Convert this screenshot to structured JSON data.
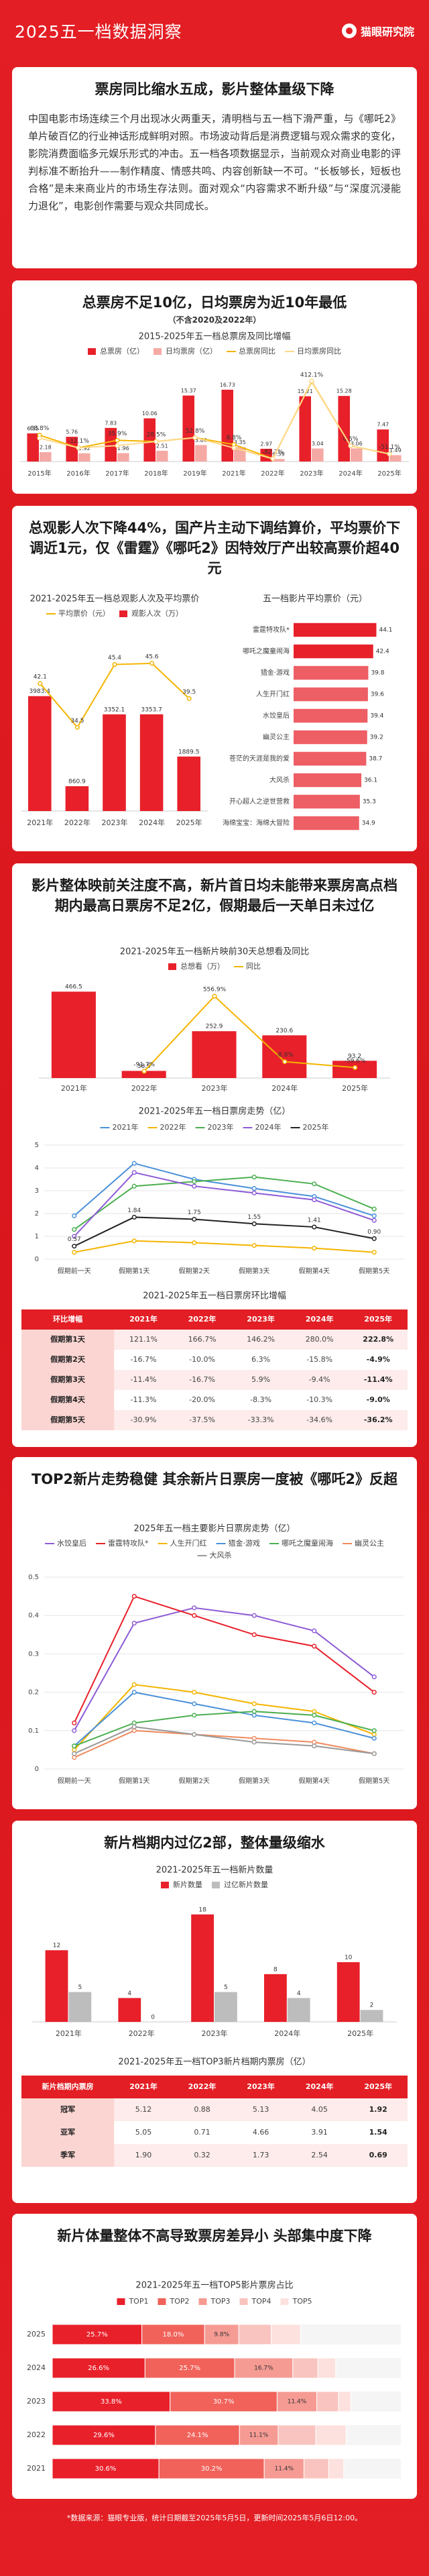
{
  "header": {
    "title": "2025五一档数据洞察",
    "logo": "猫眼研究院"
  },
  "sections": [
    {
      "heading": "票房同比缩水五成，影片整体量级下降",
      "text": "中国电影市场连续三个月出现冰火两重天，清明档与五一档下滑严重，与《哪吒2》单片破百亿的行业神话形成鲜明对照。市场波动背后是消费逻辑与观众需求的变化，影院消费面临多元娱乐形式的冲击。五一档各项数据显示，当前观众对商业电影的评判标准不断抬升——制作精度、情感共鸣、内容创新缺一不可。“长板够长，短板也合格”是未来商业片的市场生存法则。面对观众“内容需求不断升级”与“深度沉浸能力退化”，电影创作需要与观众共同成长。"
    },
    {
      "heading": "总票房不足10亿，日均票房为近10年最低",
      "note": "（不含2020及2022年）"
    },
    {
      "heading": "总观影人次下降44%，国产片主动下调结算价，平均票价下调近1元，仅《雷霆》《哪吒2》因特效厅产出较高票价超40元"
    },
    {
      "heading": "影片整体映前关注度不高，新片首日均未能带来票房高点档期内最高日票房不足2亿，假期最后一天单日未过亿"
    },
    {
      "heading": "TOP2新片走势稳健 其余新片日票房一度被《哪吒2》反超"
    },
    {
      "heading": "新片档期内过亿2部，整体量级缩水"
    },
    {
      "heading": "新片体量整体不高导致票房差异小 头部集中度下降"
    }
  ],
  "chart_data": [
    {
      "type": "bar",
      "title": "2015-2025年五一档总票房及同比增幅",
      "categories": [
        "2015年",
        "2016年",
        "2017年",
        "2018年",
        "2019年",
        "2021年",
        "2022年",
        "2023年",
        "2024年",
        "2025年"
      ],
      "series": [
        {
          "name": "总票房（亿）",
          "color": "#e8202a",
          "values": [
            6.55,
            5.76,
            7.83,
            10.06,
            15.37,
            16.73,
            2.97,
            15.21,
            15.28,
            7.47
          ]
        },
        {
          "name": "日均票房（亿）",
          "color": "#f5a9a4",
          "values": [
            2.18,
            1.92,
            1.96,
            2.51,
            3.84,
            3.35,
            0.59,
            3.04,
            3.06,
            1.49
          ]
        },
        {
          "name": "总票房同比",
          "color": "#f4b400",
          "axis": "y2",
          "values": [
            68.8,
            -12.1,
            35.9,
            28.5,
            52.8,
            8.8,
            -82.2,
            412.1,
            0.5,
            -51.1
          ],
          "value_labels": [
            "68.8%",
            "-12.1%",
            "35.9%",
            "28.5%",
            "52.8%",
            "8.8%",
            "-82.2%",
            "412.1%",
            "0.5%",
            "-51.1%"
          ]
        },
        {
          "name": "日均票房同比",
          "color": "#ffd98a",
          "axis": "y2",
          "values": [
            50.0,
            -11.9,
            2.1,
            28.1,
            53.0,
            -12.8,
            -82.4,
            415.3,
            0.7,
            -51.3
          ]
        }
      ],
      "ylim": [
        0,
        20
      ],
      "y2lim": [
        -100,
        450
      ]
    },
    {
      "type": "bar",
      "title": "2021-2025年五一档总观影人次及平均票价",
      "categories": [
        "2021年",
        "2022年",
        "2023年",
        "2024年",
        "2025年"
      ],
      "series": [
        {
          "name": "平均票价（元）",
          "color": "#f4b400",
          "axis": "y2",
          "labels": true,
          "values": [
            42.1,
            34.5,
            45.4,
            45.6,
            39.5
          ]
        },
        {
          "name": "观影人次（万）",
          "color": "#e8202a",
          "values": [
            3983.4,
            860.9,
            3352.1,
            3353.7,
            1889.5
          ]
        }
      ],
      "ylim": [
        0,
        6000
      ],
      "y2lim": [
        20,
        50
      ]
    },
    {
      "type": "barh",
      "title": "五一档影片平均票价（元）",
      "categories": [
        "雷霆特攻队*",
        "哪吒之魔童闹海",
        "猎金·游戏",
        "人生开门红",
        "水饺皇后",
        "幽灵公主",
        "苍茫的天涯是我的爱",
        "大风杀",
        "开心超人之逆世营救",
        "海绵宝宝：海绵大冒险"
      ],
      "values": [
        44.1,
        42.4,
        39.8,
        39.6,
        39.4,
        39.2,
        38.7,
        36.1,
        35.3,
        34.9
      ],
      "color": "#e8202a",
      "xlim": [
        0,
        50
      ]
    },
    {
      "type": "bar",
      "title": "2021-2025年五一档新片映前30天总想看及同比",
      "categories": [
        "2021年",
        "2022年",
        "2023年",
        "2024年",
        "2025年"
      ],
      "series": [
        {
          "name": "总想看（万）",
          "color": "#e8202a",
          "values": [
            466.5,
            38.5,
            252.9,
            230.6,
            93.2
          ]
        },
        {
          "name": "同比",
          "color": "#f4b400",
          "axis": "y2",
          "values": [
            null,
            -91.7,
            556.9,
            -8.8,
            -59.6
          ],
          "value_labels": [
            null,
            "-91.7%",
            "556.9%",
            "-8.8%",
            "-59.6%"
          ]
        }
      ],
      "ylim": [
        0,
        500
      ],
      "y2lim": [
        -150,
        650
      ]
    },
    {
      "type": "line",
      "title": "2021-2025年五一档日票房走势（亿）",
      "categories": [
        "假期前一天",
        "假期第1天",
        "假期第2天",
        "假期第3天",
        "假期第4天",
        "假期第5天"
      ],
      "series": [
        {
          "name": "2021年",
          "color": "#4a90d9",
          "values": [
            1.9,
            4.2,
            3.5,
            3.1,
            2.75,
            1.9
          ]
        },
        {
          "name": "2022年",
          "color": "#f4b400",
          "values": [
            0.3,
            0.8,
            0.72,
            0.6,
            0.48,
            0.3
          ]
        },
        {
          "name": "2023年",
          "color": "#4caf50",
          "values": [
            1.3,
            3.2,
            3.4,
            3.6,
            3.3,
            2.2
          ]
        },
        {
          "name": "2024年",
          "color": "#8e5bd6",
          "values": [
            1.0,
            3.8,
            3.2,
            2.9,
            2.6,
            1.7
          ]
        },
        {
          "name": "2025年",
          "color": "#222222",
          "values": [
            0.57,
            1.84,
            1.75,
            1.55,
            1.41,
            0.9
          ],
          "value_labels": [
            "0.57",
            "1.84",
            "1.75",
            "1.55",
            "1.41",
            "0.90"
          ]
        }
      ],
      "ylim": [
        0,
        5
      ],
      "yticks": [
        0,
        1,
        2,
        3,
        4,
        5
      ],
      "grid": true
    },
    {
      "type": "line",
      "title": "2025年五一档主要影片日票房走势（亿）",
      "categories": [
        "假期前一天",
        "假期第1天",
        "假期第2天",
        "假期第3天",
        "假期第4天",
        "假期第5天"
      ],
      "series": [
        {
          "name": "水饺皇后",
          "color": "#8e5bd6",
          "values": [
            0.1,
            0.38,
            0.42,
            0.4,
            0.36,
            0.24
          ]
        },
        {
          "name": "雷霆特攻队*",
          "color": "#e8202a",
          "values": [
            0.12,
            0.45,
            0.4,
            0.35,
            0.32,
            0.2
          ]
        },
        {
          "name": "人生开门红",
          "color": "#f4b400",
          "values": [
            0.05,
            0.22,
            0.2,
            0.17,
            0.15,
            0.09
          ]
        },
        {
          "name": "猎金·游戏",
          "color": "#4a90d9",
          "values": [
            0.06,
            0.2,
            0.17,
            0.14,
            0.12,
            0.08
          ]
        },
        {
          "name": "哪吒之魔童闹海",
          "color": "#4caf50",
          "values": [
            0.06,
            0.12,
            0.14,
            0.15,
            0.14,
            0.1
          ]
        },
        {
          "name": "幽灵公主",
          "color": "#f08a5d",
          "values": [
            0.03,
            0.1,
            0.09,
            0.08,
            0.07,
            0.04
          ]
        },
        {
          "name": "大风杀",
          "color": "#999999",
          "values": [
            0.04,
            0.11,
            0.09,
            0.07,
            0.06,
            0.04
          ]
        }
      ],
      "ylim": [
        0,
        0.5
      ],
      "yticks": [
        0,
        0.1,
        0.2,
        0.3,
        0.4,
        0.5
      ],
      "grid": true
    },
    {
      "type": "bar",
      "title": "2021-2025年五一档新片数量",
      "categories": [
        "2021年",
        "2022年",
        "2023年",
        "2024年",
        "2025年"
      ],
      "series": [
        {
          "name": "新片数量",
          "color": "#e8202a",
          "values": [
            12,
            4,
            18,
            8,
            10
          ]
        },
        {
          "name": "过亿新片数量",
          "color": "#bdbdbd",
          "values": [
            5,
            0,
            5,
            4,
            2
          ]
        }
      ],
      "ylim": [
        0,
        20
      ]
    },
    {
      "type": "stacked",
      "title": "2021-2025年五一档TOP5影片票房占比",
      "categories": [
        "2025",
        "2024",
        "2023",
        "2022",
        "2021"
      ],
      "series": [
        {
          "name": "TOP1",
          "color": "#e8202a",
          "values": [
            25.7,
            26.6,
            33.8,
            29.6,
            30.6
          ],
          "value_labels": [
            "25.7%",
            "26.6%",
            "33.8%",
            "29.6%",
            "30.6%"
          ]
        },
        {
          "name": "TOP2",
          "color": "#f0625a",
          "values": [
            18.0,
            25.7,
            30.7,
            24.1,
            30.2
          ],
          "value_labels": [
            "18.0%",
            "25.7%",
            "30.7%",
            "24.1%",
            "30.2%"
          ]
        },
        {
          "name": "TOP3",
          "color": "#f59b94",
          "values": [
            9.8,
            16.7,
            11.4,
            11.1,
            11.4
          ],
          "value_labels": [
            "9.8%",
            "16.7%",
            "11.4%",
            "11.1%",
            "11.4%"
          ]
        },
        {
          "name": "TOP4",
          "color": "#f9c4bf",
          "values": [
            9.3,
            7.2,
            6.2,
            10.8,
            7.1
          ]
        },
        {
          "name": "TOP5",
          "color": "#fce1de",
          "values": [
            8.4,
            5.1,
            3.5,
            8.7,
            4.3
          ]
        }
      ],
      "xlim": [
        0,
        100
      ]
    }
  ],
  "tables": [
    {
      "title": "2021-2025年五一档日票房环比增幅",
      "header": [
        "环比增幅",
        "2021年",
        "2022年",
        "2023年",
        "2024年",
        "2025年"
      ],
      "rows": [
        [
          "假期第1天",
          "121.1%",
          "166.7%",
          "146.2%",
          "280.0%",
          "222.8%"
        ],
        [
          "假期第2天",
          "-16.7%",
          "-10.0%",
          "6.3%",
          "-15.8%",
          "-4.9%"
        ],
        [
          "假期第3天",
          "-11.4%",
          "-16.7%",
          "5.9%",
          "-9.4%",
          "-11.4%"
        ],
        [
          "假期第4天",
          "-11.3%",
          "-20.0%",
          "-8.3%",
          "-10.3%",
          "-9.0%"
        ],
        [
          "假期第5天",
          "-30.9%",
          "-37.5%",
          "-33.3%",
          "-34.6%",
          "-36.2%"
        ]
      ]
    },
    {
      "title": "2021-2025年五一档TOP3新片档期内票房（亿）",
      "header": [
        "新片档期内票房",
        "2021年",
        "2022年",
        "2023年",
        "2024年",
        "2025年"
      ],
      "rows": [
        [
          "冠军",
          "5.12",
          "0.88",
          "5.13",
          "4.05",
          "1.92"
        ],
        [
          "亚军",
          "5.05",
          "0.71",
          "4.66",
          "3.91",
          "1.54"
        ],
        [
          "季军",
          "1.90",
          "0.32",
          "1.73",
          "2.54",
          "0.69"
        ]
      ]
    }
  ],
  "footnote": "*数据来源：猫眼专业版，统计日期截至2025年5月5日，更新时间2025年5月6日12:00。"
}
